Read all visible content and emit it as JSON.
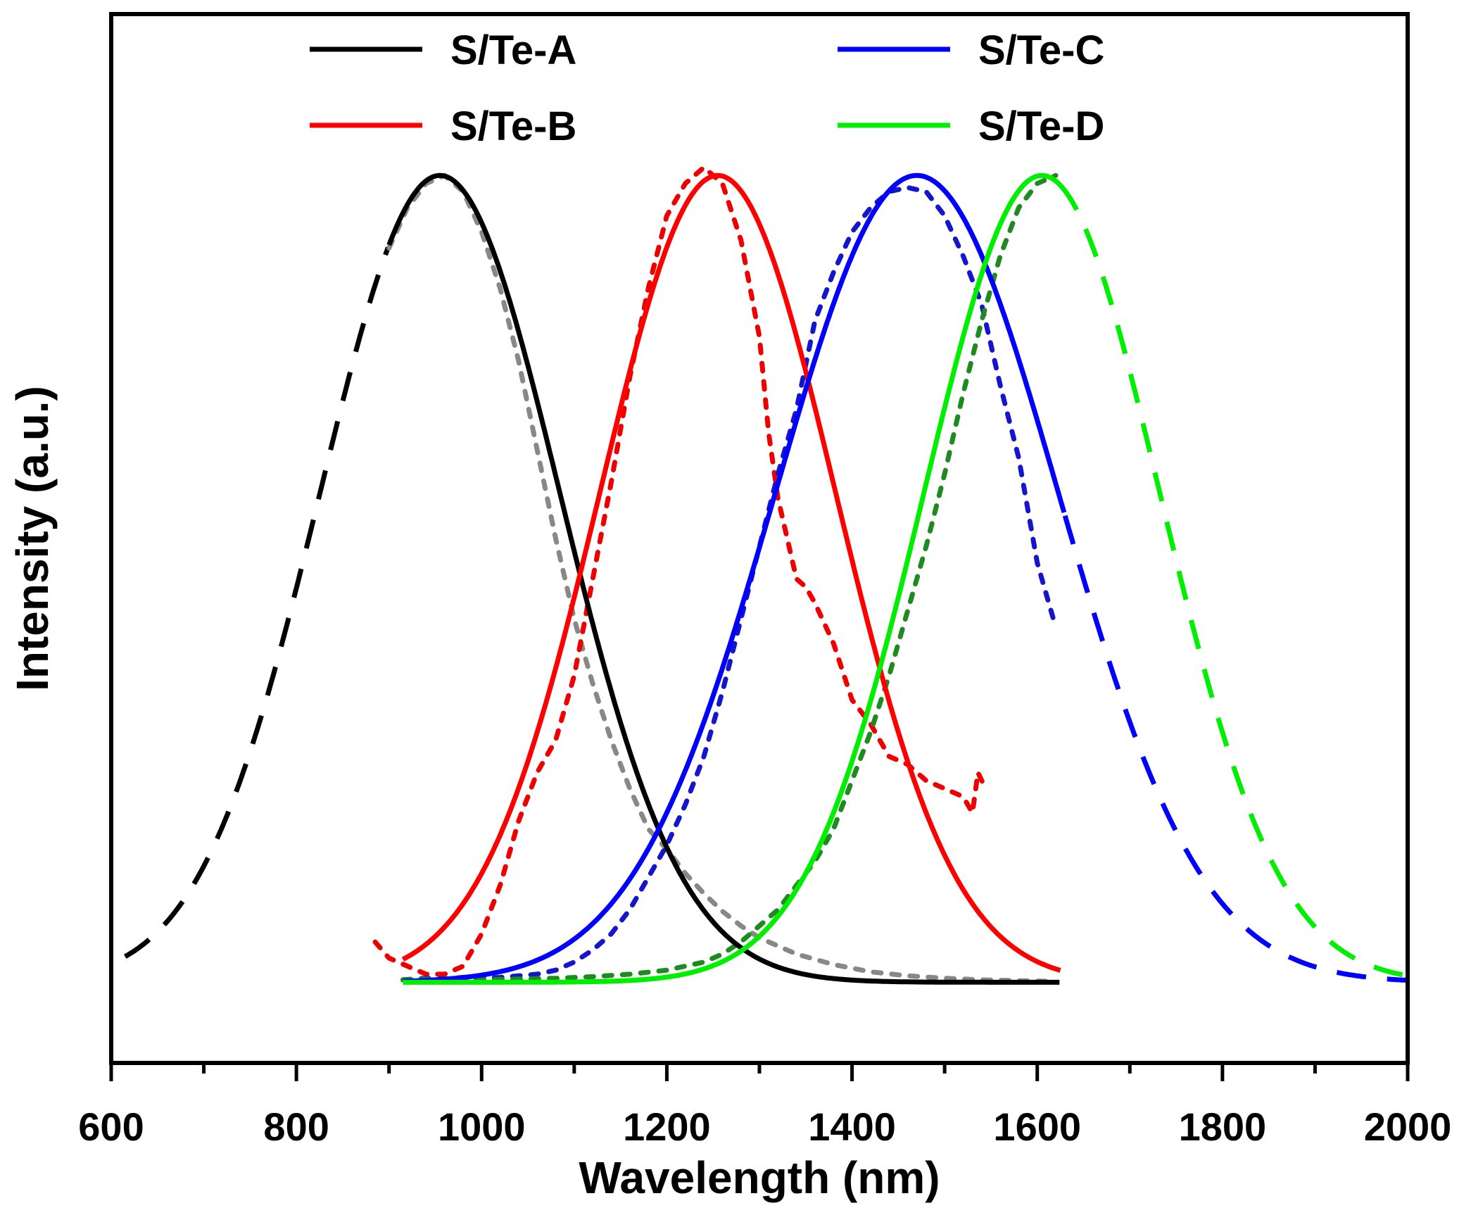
{
  "chart_data": {
    "type": "line",
    "title": "",
    "xlabel": "Wavelength (nm)",
    "ylabel": "Intensity (a.u.)",
    "xlim": [
      600,
      2000
    ],
    "ylim": [
      -0.1,
      1.2
    ],
    "x_ticks": [
      600,
      800,
      1000,
      1200,
      1400,
      1600,
      1800,
      2000
    ],
    "x_tick_labels": [
      "600",
      "800",
      "1000",
      "1200",
      "1400",
      "1600",
      "1800",
      "2000"
    ],
    "y_ticks_shown": false,
    "grid": false,
    "legend_position": "top",
    "series": [
      {
        "name": "S/Te-A",
        "color": "#000000",
        "measured_color": "#888888",
        "fit": {
          "shape": "gaussian",
          "peak_nm": 955,
          "fwhm_nm": 305,
          "amplitude": 1.0
        },
        "solid_range": [
          900,
          1625
        ],
        "dashed_range": [
          615,
          900
        ],
        "measured": {
          "x": [
            900,
            920,
            940,
            960,
            980,
            1000,
            1020,
            1040,
            1060,
            1080,
            1100,
            1120,
            1140,
            1160,
            1180,
            1200,
            1220,
            1240,
            1260,
            1280,
            1300,
            1340,
            1380,
            1420,
            1460,
            1500,
            1540,
            1580,
            1620
          ],
          "y": [
            0.91,
            0.96,
            0.99,
            1.0,
            0.98,
            0.93,
            0.86,
            0.77,
            0.66,
            0.55,
            0.45,
            0.37,
            0.3,
            0.24,
            0.19,
            0.165,
            0.135,
            0.11,
            0.088,
            0.07,
            0.055,
            0.035,
            0.022,
            0.013,
            0.008,
            0.005,
            0.003,
            0.002,
            0.001
          ]
        }
      },
      {
        "name": "S/Te-B",
        "color": "#ff0000",
        "measured_color": "#ee0000",
        "fit": {
          "shape": "gaussian",
          "peak_nm": 1255,
          "fwhm_nm": 300,
          "amplitude": 1.0
        },
        "solid_range": [
          915,
          1625
        ],
        "dashed_range": null,
        "measured": {
          "x": [
            885,
            900,
            920,
            940,
            960,
            980,
            1000,
            1020,
            1040,
            1060,
            1080,
            1100,
            1120,
            1140,
            1160,
            1180,
            1200,
            1220,
            1240,
            1260,
            1280,
            1300,
            1310,
            1320,
            1330,
            1340,
            1350,
            1360,
            1380,
            1400,
            1420,
            1440,
            1460,
            1480,
            1500,
            1520,
            1530,
            1536,
            1540,
            1545
          ],
          "y": [
            0.05,
            0.03,
            0.02,
            0.01,
            0.01,
            0.02,
            0.06,
            0.12,
            0.2,
            0.26,
            0.3,
            0.38,
            0.5,
            0.62,
            0.75,
            0.86,
            0.95,
            0.99,
            1.01,
            0.99,
            0.92,
            0.8,
            0.68,
            0.6,
            0.55,
            0.5,
            0.49,
            0.47,
            0.42,
            0.35,
            0.32,
            0.28,
            0.27,
            0.25,
            0.24,
            0.23,
            0.21,
            0.26,
            0.25,
            0.24
          ]
        }
      },
      {
        "name": "S/Te-C",
        "color": "#0000ff",
        "measured_color": "#1515cc",
        "fit": {
          "shape": "gaussian",
          "peak_nm": 1470,
          "fwhm_nm": 360,
          "amplitude": 1.0
        },
        "solid_range": [
          915,
          1630
        ],
        "dashed_range": [
          1630,
          2000
        ],
        "measured": {
          "x": [
            915,
            940,
            960,
            980,
            1000,
            1020,
            1040,
            1060,
            1080,
            1100,
            1120,
            1140,
            1160,
            1180,
            1200,
            1220,
            1240,
            1260,
            1280,
            1300,
            1320,
            1340,
            1360,
            1380,
            1400,
            1420,
            1440,
            1460,
            1480,
            1500,
            1520,
            1540,
            1560,
            1580,
            1600,
            1620
          ],
          "y": [
            0.003,
            0.005,
            0.004,
            0.006,
            0.005,
            0.006,
            0.008,
            0.01,
            0.015,
            0.025,
            0.04,
            0.06,
            0.09,
            0.13,
            0.17,
            0.22,
            0.28,
            0.36,
            0.45,
            0.54,
            0.63,
            0.71,
            0.82,
            0.88,
            0.93,
            0.96,
            0.98,
            0.985,
            0.98,
            0.95,
            0.9,
            0.84,
            0.74,
            0.65,
            0.52,
            0.44
          ]
        }
      },
      {
        "name": "S/Te-D",
        "color": "#00ee00",
        "measured_color": "#1f8a1f",
        "fit": {
          "shape": "gaussian",
          "peak_nm": 1605,
          "fwhm_nm": 300,
          "amplitude": 1.0
        },
        "solid_range": [
          915,
          1625
        ],
        "dashed_range": [
          1625,
          2000
        ],
        "measured": {
          "x": [
            915,
            940,
            960,
            1000,
            1040,
            1080,
            1120,
            1160,
            1200,
            1240,
            1260,
            1280,
            1300,
            1320,
            1340,
            1360,
            1380,
            1400,
            1420,
            1440,
            1460,
            1480,
            1500,
            1520,
            1540,
            1560,
            1580,
            1600,
            1620
          ],
          "y": [
            0.003,
            0.004,
            0.003,
            0.003,
            0.004,
            0.005,
            0.007,
            0.01,
            0.015,
            0.025,
            0.035,
            0.05,
            0.07,
            0.09,
            0.12,
            0.15,
            0.19,
            0.25,
            0.31,
            0.38,
            0.46,
            0.54,
            0.63,
            0.73,
            0.82,
            0.9,
            0.96,
            0.99,
            1.0
          ]
        }
      }
    ]
  }
}
